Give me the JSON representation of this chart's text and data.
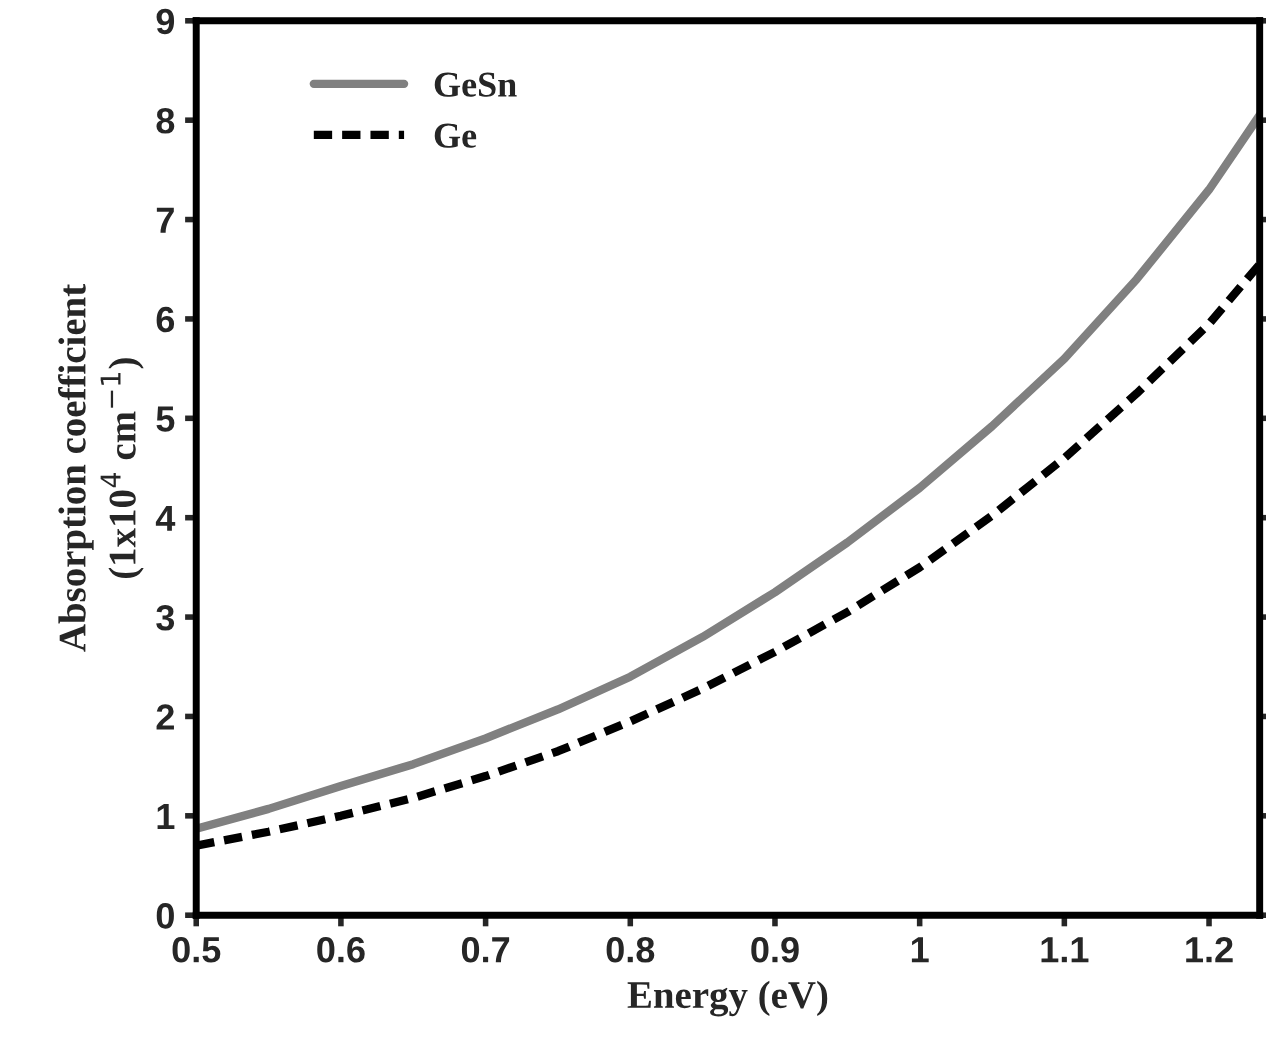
{
  "chart_data": {
    "type": "line",
    "xlabel": "Energy (eV)",
    "ylabel": "Absorption coefficient\n(1x10$^{4}$ cm$^{−1}$)",
    "x": [
      0.5,
      0.55,
      0.6,
      0.65,
      0.7,
      0.75,
      0.8,
      0.85,
      0.9,
      0.95,
      1.0,
      1.05,
      1.1,
      1.15,
      1.2,
      1.235
    ],
    "series": [
      {
        "name": "GeSn",
        "color": "#808080",
        "line_style": "solid",
        "values": [
          0.87,
          1.07,
          1.3,
          1.52,
          1.78,
          2.07,
          2.4,
          2.8,
          3.25,
          3.75,
          4.3,
          4.92,
          5.6,
          6.4,
          7.3,
          8.05
        ]
      },
      {
        "name": "Ge",
        "color": "#000000",
        "line_style": "dashed",
        "values": [
          0.7,
          0.84,
          1.0,
          1.18,
          1.4,
          1.65,
          1.95,
          2.28,
          2.65,
          3.05,
          3.5,
          4.02,
          4.6,
          5.25,
          5.95,
          6.55
        ]
      }
    ],
    "xlim": [
      0.5,
      1.235
    ],
    "xticks": [
      0.5,
      0.6,
      0.7,
      0.8,
      0.9,
      1,
      1.1,
      1.2
    ],
    "ylim": [
      0,
      9
    ],
    "yticks": [
      0,
      1,
      2,
      3,
      4,
      5,
      6,
      7,
      8,
      9
    ],
    "grid": false,
    "legend": "top left"
  }
}
